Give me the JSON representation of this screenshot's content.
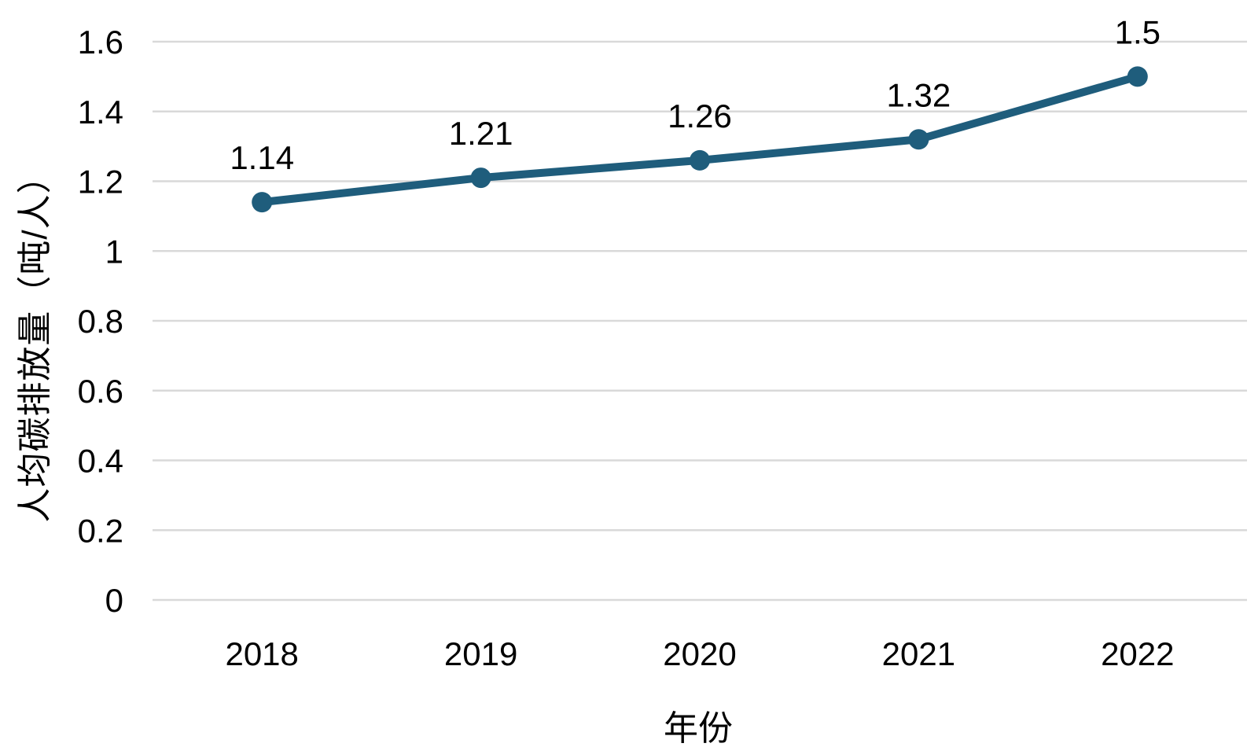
{
  "chart_data": {
    "type": "line",
    "title": "",
    "xlabel": "年份",
    "ylabel": "人均碳排放量（吨/人）",
    "categories": [
      "2018",
      "2019",
      "2020",
      "2021",
      "2022"
    ],
    "series": [
      {
        "name": "人均碳排放量",
        "values": [
          1.14,
          1.21,
          1.26,
          1.32,
          1.5
        ]
      }
    ],
    "data_labels": [
      "1.14",
      "1.21",
      "1.26",
      "1.32",
      "1.5"
    ],
    "y_ticks": [
      "0",
      "0.2",
      "0.4",
      "0.6",
      "0.8",
      "1",
      "1.2",
      "1.4",
      "1.6"
    ],
    "y_tick_values": [
      0,
      0.2,
      0.4,
      0.6,
      0.8,
      1,
      1.2,
      1.4,
      1.6
    ],
    "ylim": [
      0,
      1.6
    ],
    "grid": "horizontal-only",
    "legend": "none",
    "marker": "filled-circle",
    "colors": {
      "line": "#1F5D7C",
      "marker": "#1F5D7C",
      "gridline": "#D9D9D9",
      "text": "#000000",
      "background": "#FFFFFF"
    }
  }
}
